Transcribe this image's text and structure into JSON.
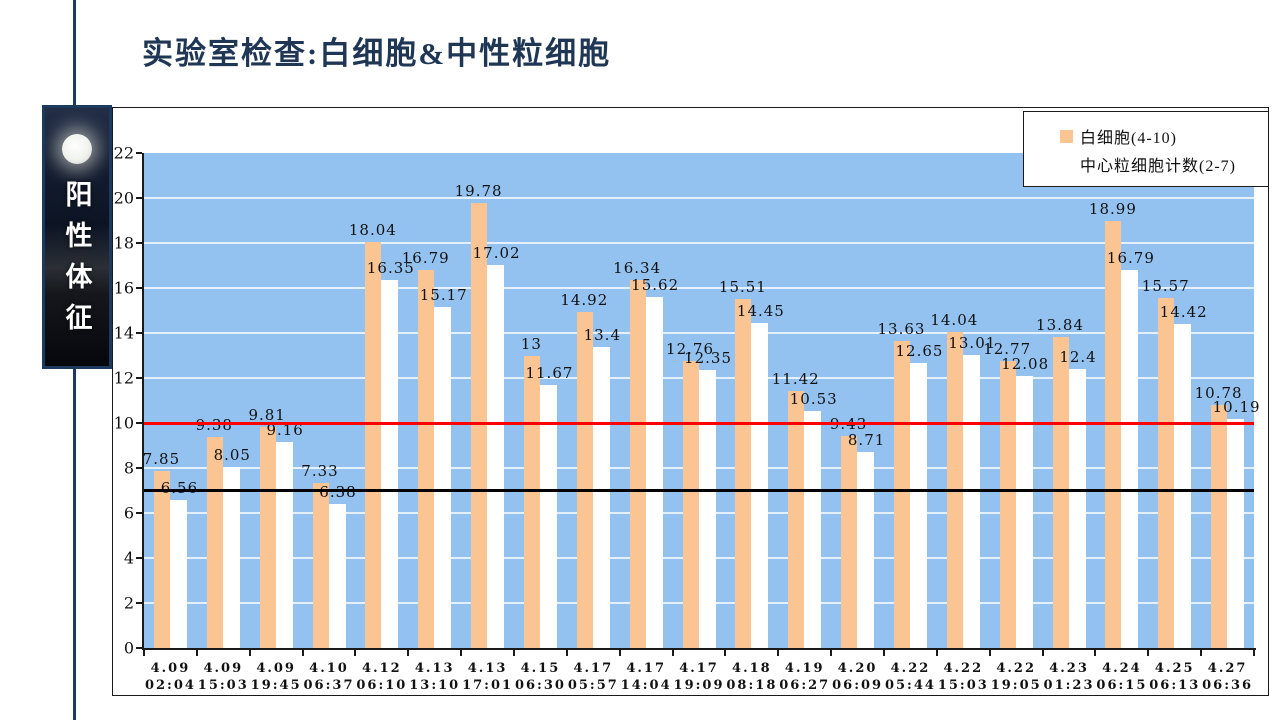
{
  "title": "实验室检查:白细胞&中性粒细胞",
  "sidebar": {
    "vertical_label": "阳性体征"
  },
  "legend": {
    "items": [
      {
        "label": "白细胞(4-10)",
        "swatch_color": "#FAC493"
      },
      {
        "label": "中心粒细胞计数(2-7)",
        "swatch_color": "#FFFFFF"
      }
    ]
  },
  "colors": {
    "accent_navy": "#1F3655",
    "plot_bg": "#94C2F0",
    "wbc_bar": "#FAC493",
    "neutrophil_bar": "#FFFFFF",
    "wbc_upper_limit_line": "#FF0000",
    "neutrophil_upper_limit_line": "#000000"
  },
  "chart_data": {
    "type": "bar",
    "title": "实验室检查:白细胞&中性粒细胞",
    "categories": [
      {
        "date": "4.09",
        "time": "02:04"
      },
      {
        "date": "4.09",
        "time": "15:03"
      },
      {
        "date": "4.09",
        "time": "19:45"
      },
      {
        "date": "4.10",
        "time": "06:37"
      },
      {
        "date": "4.12",
        "time": "06:10"
      },
      {
        "date": "4.13",
        "time": "13:10"
      },
      {
        "date": "4.13",
        "time": "17:01"
      },
      {
        "date": "4.15",
        "time": "06:30"
      },
      {
        "date": "4.17",
        "time": "05:57"
      },
      {
        "date": "4.17",
        "time": "14:04"
      },
      {
        "date": "4.17",
        "time": "19:09"
      },
      {
        "date": "4.18",
        "time": "08:18"
      },
      {
        "date": "4.19",
        "time": "06:27"
      },
      {
        "date": "4.20",
        "time": "06:09"
      },
      {
        "date": "4.22",
        "time": "05:44"
      },
      {
        "date": "4.22",
        "time": "15:03"
      },
      {
        "date": "4.22",
        "time": "19:05"
      },
      {
        "date": "4.23",
        "time": "01:23"
      },
      {
        "date": "4.24",
        "time": "06:15"
      },
      {
        "date": "4.25",
        "time": "06:13"
      },
      {
        "date": "4.27",
        "time": "06:36"
      }
    ],
    "series": [
      {
        "name": "白细胞(4-10)",
        "color": "#FAC493",
        "values": [
          7.85,
          9.38,
          9.81,
          7.33,
          18.04,
          16.79,
          19.78,
          13,
          14.92,
          16.34,
          12.76,
          15.51,
          11.42,
          9.43,
          13.63,
          14.04,
          12.77,
          13.84,
          18.99,
          15.57,
          10.78
        ]
      },
      {
        "name": "中心粒细胞计数(2-7)",
        "color": "#FFFFFF",
        "values": [
          6.56,
          8.05,
          9.16,
          6.38,
          16.35,
          15.17,
          17.02,
          11.67,
          13.4,
          15.62,
          12.35,
          14.45,
          10.53,
          8.71,
          12.65,
          13.01,
          12.08,
          12.4,
          16.79,
          14.42,
          10.19
        ]
      }
    ],
    "ylim": [
      0,
      22
    ],
    "y_ticks": [
      0,
      2,
      4,
      6,
      8,
      10,
      12,
      14,
      16,
      18,
      20,
      22
    ],
    "ref_lines": [
      {
        "name": "wbc-upper-limit",
        "value": 10,
        "color": "#FF0000"
      },
      {
        "name": "neutrophil-upper-limit",
        "value": 7,
        "color": "#000000"
      }
    ],
    "grid": true,
    "legend_position": "top-right"
  }
}
